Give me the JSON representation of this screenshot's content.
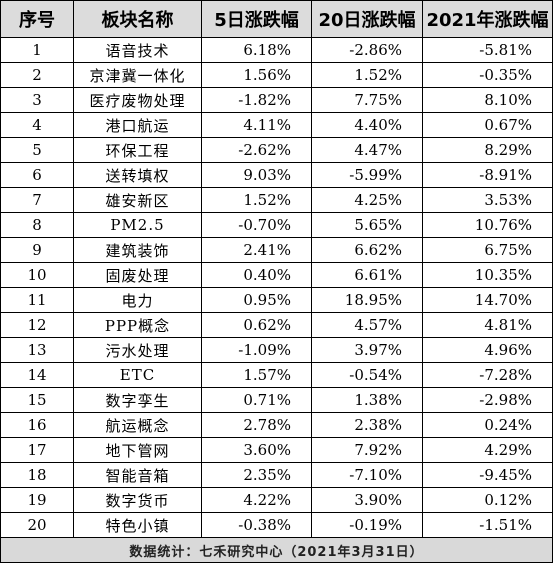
{
  "table": {
    "headers": [
      "序号",
      "板块名称",
      "5日涨跌幅",
      "20日涨跌幅",
      "2021年涨跌幅"
    ],
    "rows": [
      {
        "no": "1",
        "name": "语音技术",
        "d5": "6.18%",
        "d20": "-2.86%",
        "y2021": "-5.81%"
      },
      {
        "no": "2",
        "name": "京津冀一体化",
        "d5": "1.56%",
        "d20": "1.52%",
        "y2021": "-0.35%"
      },
      {
        "no": "3",
        "name": "医疗废物处理",
        "d5": "-1.82%",
        "d20": "7.75%",
        "y2021": "8.10%"
      },
      {
        "no": "4",
        "name": "港口航运",
        "d5": "4.11%",
        "d20": "4.40%",
        "y2021": "0.67%"
      },
      {
        "no": "5",
        "name": "环保工程",
        "d5": "-2.62%",
        "d20": "4.47%",
        "y2021": "8.29%"
      },
      {
        "no": "6",
        "name": "送转填权",
        "d5": "9.03%",
        "d20": "-5.99%",
        "y2021": "-8.91%"
      },
      {
        "no": "7",
        "name": "雄安新区",
        "d5": "1.52%",
        "d20": "4.25%",
        "y2021": "3.53%"
      },
      {
        "no": "8",
        "name": "PM2.5",
        "d5": "-0.70%",
        "d20": "5.65%",
        "y2021": "10.76%"
      },
      {
        "no": "9",
        "name": "建筑装饰",
        "d5": "2.41%",
        "d20": "6.62%",
        "y2021": "6.75%"
      },
      {
        "no": "10",
        "name": "固废处理",
        "d5": "0.40%",
        "d20": "6.61%",
        "y2021": "10.35%"
      },
      {
        "no": "11",
        "name": "电力",
        "d5": "0.95%",
        "d20": "18.95%",
        "y2021": "14.70%"
      },
      {
        "no": "12",
        "name": "PPP概念",
        "d5": "0.62%",
        "d20": "4.57%",
        "y2021": "4.81%"
      },
      {
        "no": "13",
        "name": "污水处理",
        "d5": "-1.09%",
        "d20": "3.97%",
        "y2021": "4.96%"
      },
      {
        "no": "14",
        "name": "ETC",
        "d5": "1.57%",
        "d20": "-0.54%",
        "y2021": "-7.28%"
      },
      {
        "no": "15",
        "name": "数字孪生",
        "d5": "0.71%",
        "d20": "1.38%",
        "y2021": "-2.98%"
      },
      {
        "no": "16",
        "name": "航运概念",
        "d5": "2.78%",
        "d20": "2.38%",
        "y2021": "0.24%"
      },
      {
        "no": "17",
        "name": "地下管网",
        "d5": "3.60%",
        "d20": "7.92%",
        "y2021": "4.29%"
      },
      {
        "no": "18",
        "name": "智能音箱",
        "d5": "2.35%",
        "d20": "-7.10%",
        "y2021": "-9.45%"
      },
      {
        "no": "19",
        "name": "数字货币",
        "d5": "4.22%",
        "d20": "3.90%",
        "y2021": "0.12%"
      },
      {
        "no": "20",
        "name": "特色小镇",
        "d5": "-0.38%",
        "d20": "-0.19%",
        "y2021": "-1.51%"
      }
    ],
    "footer": "数据统计：七禾研究中心（2021年3月31日）"
  }
}
